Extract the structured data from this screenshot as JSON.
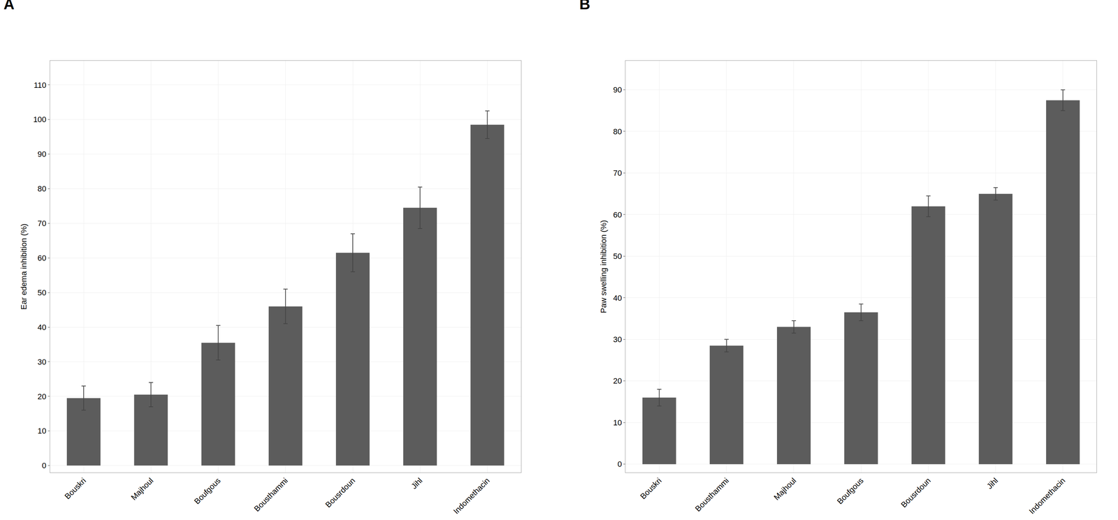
{
  "chart_data": [
    {
      "type": "bar",
      "title": "A",
      "categories": [
        "Bouskri",
        "Majhoul",
        "Boufgous",
        "Bousthammi",
        "Bousrdoun",
        "Jihl",
        "Indomethacin"
      ],
      "values": [
        19.5,
        20.5,
        35.5,
        46.0,
        61.5,
        74.5,
        98.5
      ],
      "errors": [
        3.5,
        3.5,
        5.0,
        5.0,
        5.5,
        6.0,
        4.0
      ],
      "y_label": "Ear edema inhibition (%)",
      "ylim": [
        -2,
        117
      ],
      "yticks": [
        0,
        10,
        20,
        30,
        40,
        50,
        60,
        70,
        80,
        90,
        100,
        110
      ],
      "color": "#5c5c5c",
      "grid": true
    },
    {
      "type": "bar",
      "title": "B",
      "categories": [
        "Bouskri",
        "Bousthammi",
        "Majhoul",
        "Boufgous",
        "Bousrdoun",
        "Jihl",
        "Indomethacin"
      ],
      "values": [
        16.0,
        28.5,
        33.0,
        36.5,
        62.0,
        65.0,
        87.5
      ],
      "errors": [
        2.0,
        1.5,
        1.5,
        2.0,
        2.5,
        1.5,
        2.5
      ],
      "y_label": "Paw swelling inhibition (%)",
      "ylim": [
        -2,
        97
      ],
      "yticks": [
        0,
        10,
        20,
        30,
        40,
        50,
        60,
        70,
        80,
        90
      ],
      "color": "#5c5c5c",
      "grid": true
    }
  ]
}
